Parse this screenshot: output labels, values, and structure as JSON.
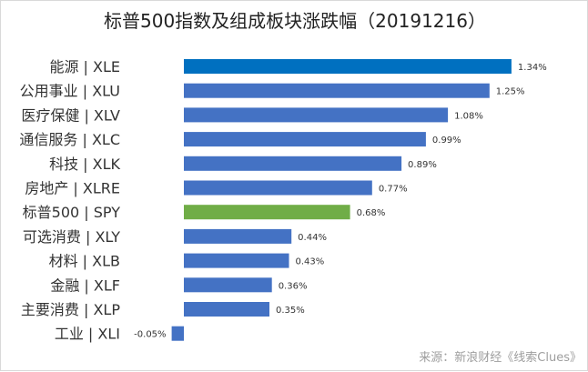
{
  "chart_data": {
    "type": "bar",
    "orientation": "horizontal",
    "title": "标普500指数及组成板块涨跌幅（20191216）",
    "categories": [
      "能源 | XLE",
      "公用事业 | XLU",
      "医疗保健 | XLV",
      "通信服务 | XLC",
      "科技 | XLK",
      "房地产 | XLRE",
      "标普500 | SPY",
      "可选消费 | XLY",
      "材料 | XLB",
      "金融 | XLF",
      "主要消费 | XLP",
      "工业 | XLI"
    ],
    "values": [
      1.34,
      1.25,
      1.08,
      0.99,
      0.89,
      0.77,
      0.68,
      0.44,
      0.43,
      0.36,
      0.35,
      -0.05
    ],
    "data_labels": [
      "1.34%",
      "1.25%",
      "1.08%",
      "0.99%",
      "0.89%",
      "0.77%",
      "0.68%",
      "0.44%",
      "0.43%",
      "0.36%",
      "0.35%",
      "-0.05%"
    ],
    "bar_colors": [
      "#0070C0",
      "#4472C4",
      "#4472C4",
      "#4472C4",
      "#4472C4",
      "#4472C4",
      "#70AD47",
      "#4472C4",
      "#4472C4",
      "#4472C4",
      "#4472C4",
      "#4472C4"
    ],
    "xlim": [
      -0.05,
      1.34
    ],
    "grid": false,
    "legend": "none",
    "source": "来源：新浪财经《线索Clues》"
  }
}
